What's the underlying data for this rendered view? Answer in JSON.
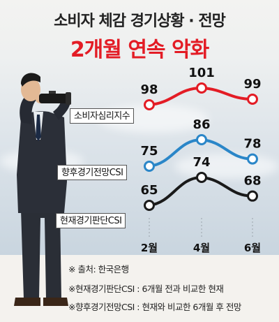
{
  "header": {
    "title": "소비자 체감 경기상황 · 전망",
    "subtitle": "2개월 연속 악화"
  },
  "notes": [
    "※ 출처: 한국은행",
    "※현재경기판단CSI : 6개월 전과 비교한 현재",
    "※향후경기전망CSI : 현재와 비교한 6개월 후 전망"
  ],
  "colors": {
    "consumer": "#e31c25",
    "outlook": "#2a86c8",
    "current": "#1a1a1a",
    "title_accent": "#e31c25"
  },
  "chart_data": {
    "type": "line",
    "categories": [
      "2월",
      "4월",
      "6월"
    ],
    "series": [
      {
        "name": "소비자심리지수",
        "values": [
          98,
          101,
          99
        ],
        "labels": [
          "98",
          "101",
          "99"
        ]
      },
      {
        "name": "향후경기전망CSI",
        "values": [
          75,
          86,
          78
        ],
        "labels": [
          "75",
          "86",
          "78"
        ]
      },
      {
        "name": "현재경기판단CSI",
        "values": [
          65,
          74,
          68
        ],
        "labels": [
          "65",
          "74",
          "68"
        ]
      }
    ],
    "source": "한국은행"
  }
}
